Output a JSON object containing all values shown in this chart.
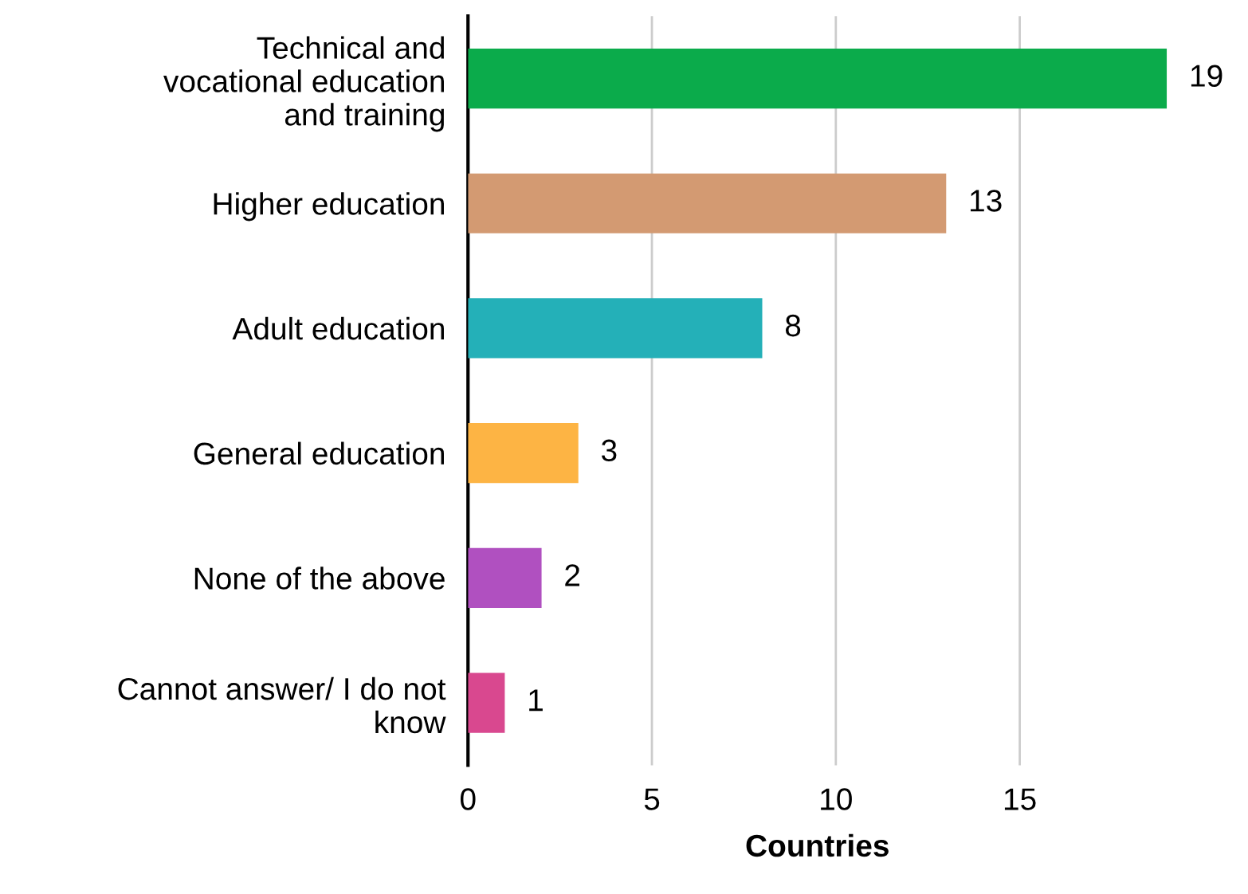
{
  "chart_data": {
    "type": "bar",
    "orientation": "horizontal",
    "xlabel": "Countries",
    "categories": [
      "Technical and\nvocational education\nand training",
      "Higher education",
      "Adult education",
      "General education",
      "None of the above",
      "Cannot answer/ I do not\nknow"
    ],
    "values": [
      19,
      13,
      8,
      3,
      2,
      1
    ],
    "colors": [
      "#0bab4b",
      "#d39a72",
      "#24b0b8",
      "#fdb444",
      "#b050c0",
      "#d9488f"
    ],
    "xlim": [
      0,
      19
    ],
    "xticks": [
      0,
      5,
      10,
      15
    ],
    "grid": "x",
    "data_labels": true
  }
}
